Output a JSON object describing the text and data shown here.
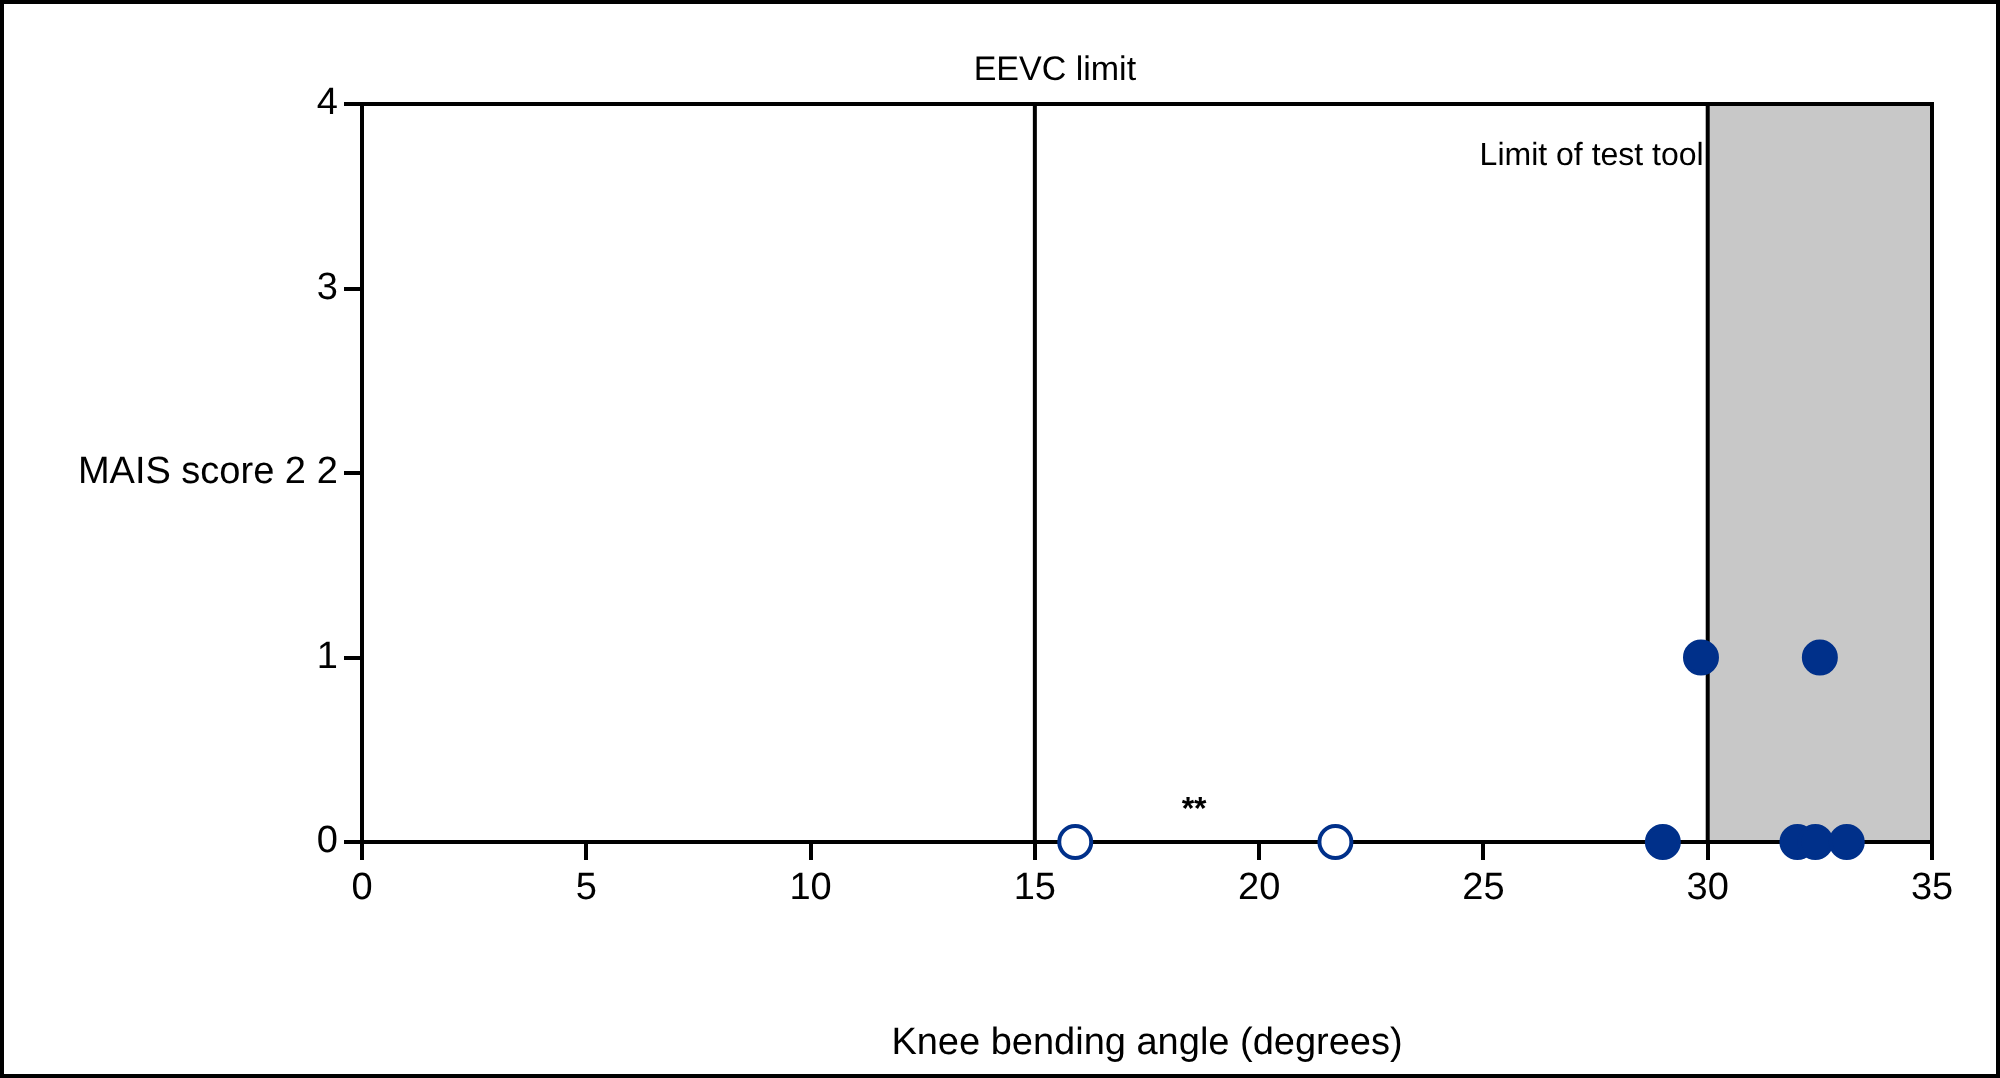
{
  "chart_data": {
    "type": "scatter",
    "xlabel": "Knee bending angle (degrees)",
    "ylabel": "MAIS score 2",
    "xlim": [
      0,
      35
    ],
    "xticks": [
      0,
      5,
      10,
      15,
      20,
      25,
      30,
      35
    ],
    "ylim": [
      0,
      4
    ],
    "yticks": [
      0,
      1,
      2,
      3,
      4
    ],
    "grid": false,
    "legend": false,
    "marker": "circle",
    "color": "#00308a",
    "series": [
      {
        "color": "#ffffff",
        "x": [
          15.9,
          21.7
        ],
        "values": [
          0,
          0
        ]
      },
      {
        "color": "#00308a",
        "x": [
          29.0,
          29.85,
          32.0,
          32.4,
          33.1,
          32.5
        ],
        "values": [
          0,
          1,
          0,
          0,
          0,
          1
        ]
      }
    ],
    "ref_lines": [
      {
        "axis": "x",
        "value": 15,
        "label": "EEVC limit",
        "color": "#000000"
      }
    ],
    "bands": [
      {
        "axis": "x",
        "from": 30,
        "to": 35,
        "label": "Limit of test tool",
        "color": "#c8c8c8"
      }
    ],
    "annotations": [
      "**"
    ]
  }
}
